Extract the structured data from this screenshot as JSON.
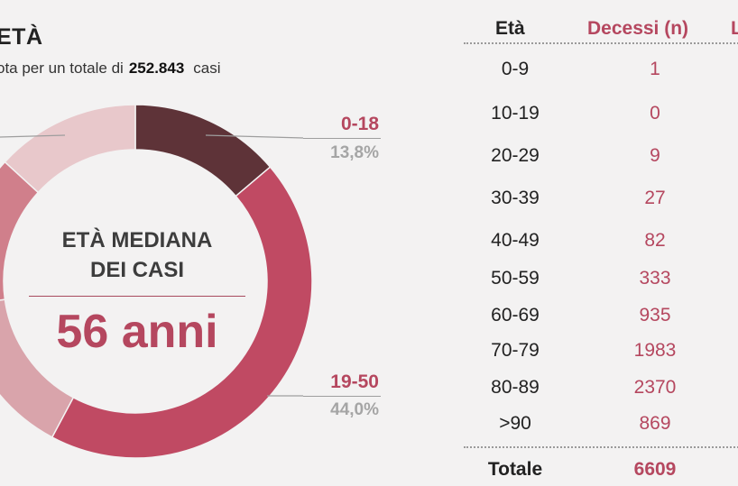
{
  "header": {
    "title": "ETÀ",
    "subtitle_pre": "ota per un totale di",
    "subtitle_total": "252.843",
    "subtitle_post": "casi"
  },
  "center": {
    "label_line1": "ETÀ MEDIANA",
    "label_line2": "DEI CASI",
    "value": "56 anni"
  },
  "chart_data": [
    {
      "type": "pie",
      "series": [
        {
          "label": "0-18",
          "value": 13.8,
          "pct_label": "13,8%",
          "color": "#5e3338"
        },
        {
          "label": "19-50",
          "value": 44.0,
          "pct_label": "44,0%",
          "color": "#c04a63"
        },
        {
          "label": "",
          "value": 15.0,
          "pct_label": "",
          "color": "#d9a4ab"
        },
        {
          "label": "",
          "value": 14.0,
          "pct_label": "",
          "color": "#d07f8b"
        },
        {
          "label": "",
          "value": 13.2,
          "pct_label": "",
          "color": "#e8c8cb"
        }
      ]
    },
    {
      "type": "table",
      "columns": [
        "Età",
        "Decessi (n)",
        "L"
      ],
      "rows": [
        {
          "age": "0-9",
          "deaths": "1"
        },
        {
          "age": "10-19",
          "deaths": "0"
        },
        {
          "age": "20-29",
          "deaths": "9"
        },
        {
          "age": "30-39",
          "deaths": "27"
        },
        {
          "age": "40-49",
          "deaths": "82"
        },
        {
          "age": "50-59",
          "deaths": "333"
        },
        {
          "age": "60-69",
          "deaths": "935"
        },
        {
          "age": "70-79",
          "deaths": "1983"
        },
        {
          "age": "80-89",
          "deaths": "2370"
        },
        {
          "age": ">90",
          "deaths": "869"
        }
      ],
      "total": {
        "label": "Totale",
        "deaths": "6609"
      }
    }
  ],
  "colors": {
    "accent": "#b5475f",
    "text_dark": "#222222",
    "muted": "#a5a5a5",
    "background": "#f3f2f2"
  }
}
